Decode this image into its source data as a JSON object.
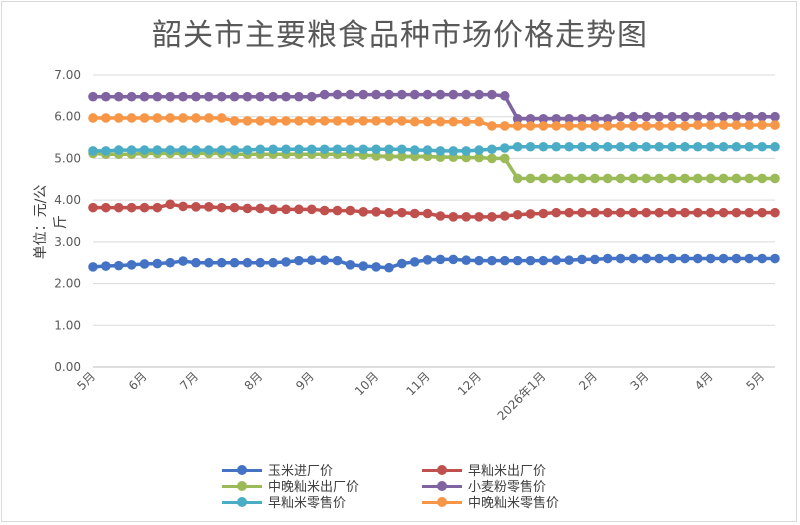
{
  "chart_data": {
    "type": "line",
    "title": "韶关市主要粮食品种市场价格走势图",
    "ylabel": "单位：元/公斤",
    "xlabel": "",
    "ylim": [
      0,
      7
    ],
    "yticks": [
      "0.00",
      "1.00",
      "2.00",
      "3.00",
      "4.00",
      "5.00",
      "6.00",
      "7.00"
    ],
    "grid": true,
    "legend_position": "bottom",
    "x_tick_labels": [
      {
        "label": "5月",
        "index": 0
      },
      {
        "label": "6月",
        "index": 4
      },
      {
        "label": "7月",
        "index": 8
      },
      {
        "label": "8月",
        "index": 13
      },
      {
        "label": "9月",
        "index": 17
      },
      {
        "label": "10月",
        "index": 22
      },
      {
        "label": "11月",
        "index": 26
      },
      {
        "label": "12月",
        "index": 30
      },
      {
        "label": "2026年1月",
        "index": 35
      },
      {
        "label": "2月",
        "index": 39
      },
      {
        "label": "3月",
        "index": 43
      },
      {
        "label": "4月",
        "index": 48
      },
      {
        "label": "5月",
        "index": 52
      }
    ],
    "series": [
      {
        "name": "玉米进厂价",
        "color": "#4472c4",
        "values": [
          2.4,
          2.42,
          2.43,
          2.45,
          2.47,
          2.48,
          2.5,
          2.54,
          2.5,
          2.5,
          2.5,
          2.5,
          2.5,
          2.5,
          2.5,
          2.52,
          2.55,
          2.56,
          2.56,
          2.55,
          2.45,
          2.42,
          2.4,
          2.38,
          2.48,
          2.52,
          2.57,
          2.58,
          2.58,
          2.56,
          2.55,
          2.55,
          2.55,
          2.55,
          2.55,
          2.55,
          2.56,
          2.56,
          2.58,
          2.58,
          2.6,
          2.6,
          2.6,
          2.6,
          2.6,
          2.6,
          2.6,
          2.6,
          2.6,
          2.6,
          2.6,
          2.6,
          2.6,
          2.6
        ]
      },
      {
        "name": "早籼米出厂价",
        "color": "#c0504d",
        "values": [
          3.82,
          3.82,
          3.82,
          3.82,
          3.82,
          3.82,
          3.9,
          3.85,
          3.84,
          3.84,
          3.82,
          3.82,
          3.8,
          3.8,
          3.78,
          3.78,
          3.78,
          3.78,
          3.75,
          3.75,
          3.75,
          3.72,
          3.72,
          3.7,
          3.7,
          3.68,
          3.68,
          3.62,
          3.6,
          3.6,
          3.6,
          3.6,
          3.62,
          3.65,
          3.67,
          3.68,
          3.7,
          3.7,
          3.7,
          3.7,
          3.7,
          3.7,
          3.7,
          3.7,
          3.7,
          3.7,
          3.7,
          3.7,
          3.7,
          3.7,
          3.7,
          3.7,
          3.7,
          3.7
        ]
      },
      {
        "name": "中晚籼米出厂价",
        "color": "#9bbb59",
        "values": [
          5.12,
          5.1,
          5.1,
          5.1,
          5.12,
          5.12,
          5.12,
          5.12,
          5.12,
          5.12,
          5.12,
          5.1,
          5.1,
          5.1,
          5.1,
          5.1,
          5.1,
          5.1,
          5.1,
          5.1,
          5.1,
          5.08,
          5.06,
          5.05,
          5.05,
          5.05,
          5.05,
          5.03,
          5.03,
          5.02,
          5.02,
          5.0,
          5.0,
          4.52,
          4.52,
          4.52,
          4.52,
          4.52,
          4.52,
          4.52,
          4.52,
          4.52,
          4.52,
          4.52,
          4.52,
          4.52,
          4.52,
          4.52,
          4.52,
          4.52,
          4.52,
          4.52,
          4.52,
          4.52
        ]
      },
      {
        "name": "小麦粉零售价",
        "color": "#8064a2",
        "values": [
          6.48,
          6.48,
          6.48,
          6.48,
          6.48,
          6.48,
          6.48,
          6.48,
          6.48,
          6.48,
          6.48,
          6.48,
          6.48,
          6.48,
          6.48,
          6.48,
          6.48,
          6.48,
          6.53,
          6.53,
          6.53,
          6.53,
          6.53,
          6.53,
          6.53,
          6.53,
          6.53,
          6.53,
          6.53,
          6.53,
          6.53,
          6.53,
          6.5,
          5.95,
          5.95,
          5.95,
          5.95,
          5.95,
          5.95,
          5.95,
          5.95,
          6.0,
          6.0,
          6.0,
          6.0,
          6.0,
          6.0,
          6.0,
          6.0,
          6.0,
          6.0,
          6.0,
          6.0,
          6.0
        ]
      },
      {
        "name": "早籼米零售价",
        "color": "#4bacc6",
        "values": [
          5.18,
          5.18,
          5.2,
          5.2,
          5.2,
          5.2,
          5.2,
          5.2,
          5.2,
          5.2,
          5.2,
          5.2,
          5.2,
          5.22,
          5.22,
          5.22,
          5.22,
          5.22,
          5.22,
          5.22,
          5.22,
          5.22,
          5.22,
          5.22,
          5.22,
          5.2,
          5.2,
          5.18,
          5.18,
          5.18,
          5.2,
          5.22,
          5.25,
          5.28,
          5.28,
          5.28,
          5.28,
          5.28,
          5.28,
          5.28,
          5.28,
          5.28,
          5.28,
          5.28,
          5.28,
          5.28,
          5.28,
          5.28,
          5.28,
          5.28,
          5.28,
          5.28,
          5.28,
          5.28
        ]
      },
      {
        "name": "中晚籼米零售价",
        "color": "#f79646",
        "values": [
          5.97,
          5.97,
          5.97,
          5.97,
          5.97,
          5.97,
          5.97,
          5.97,
          5.97,
          5.97,
          5.97,
          5.9,
          5.9,
          5.9,
          5.9,
          5.9,
          5.9,
          5.9,
          5.9,
          5.9,
          5.9,
          5.9,
          5.9,
          5.9,
          5.9,
          5.88,
          5.88,
          5.88,
          5.88,
          5.88,
          5.88,
          5.78,
          5.78,
          5.78,
          5.78,
          5.78,
          5.78,
          5.78,
          5.78,
          5.78,
          5.78,
          5.78,
          5.78,
          5.78,
          5.78,
          5.78,
          5.78,
          5.8,
          5.8,
          5.8,
          5.8,
          5.8,
          5.8,
          5.8
        ]
      }
    ]
  }
}
